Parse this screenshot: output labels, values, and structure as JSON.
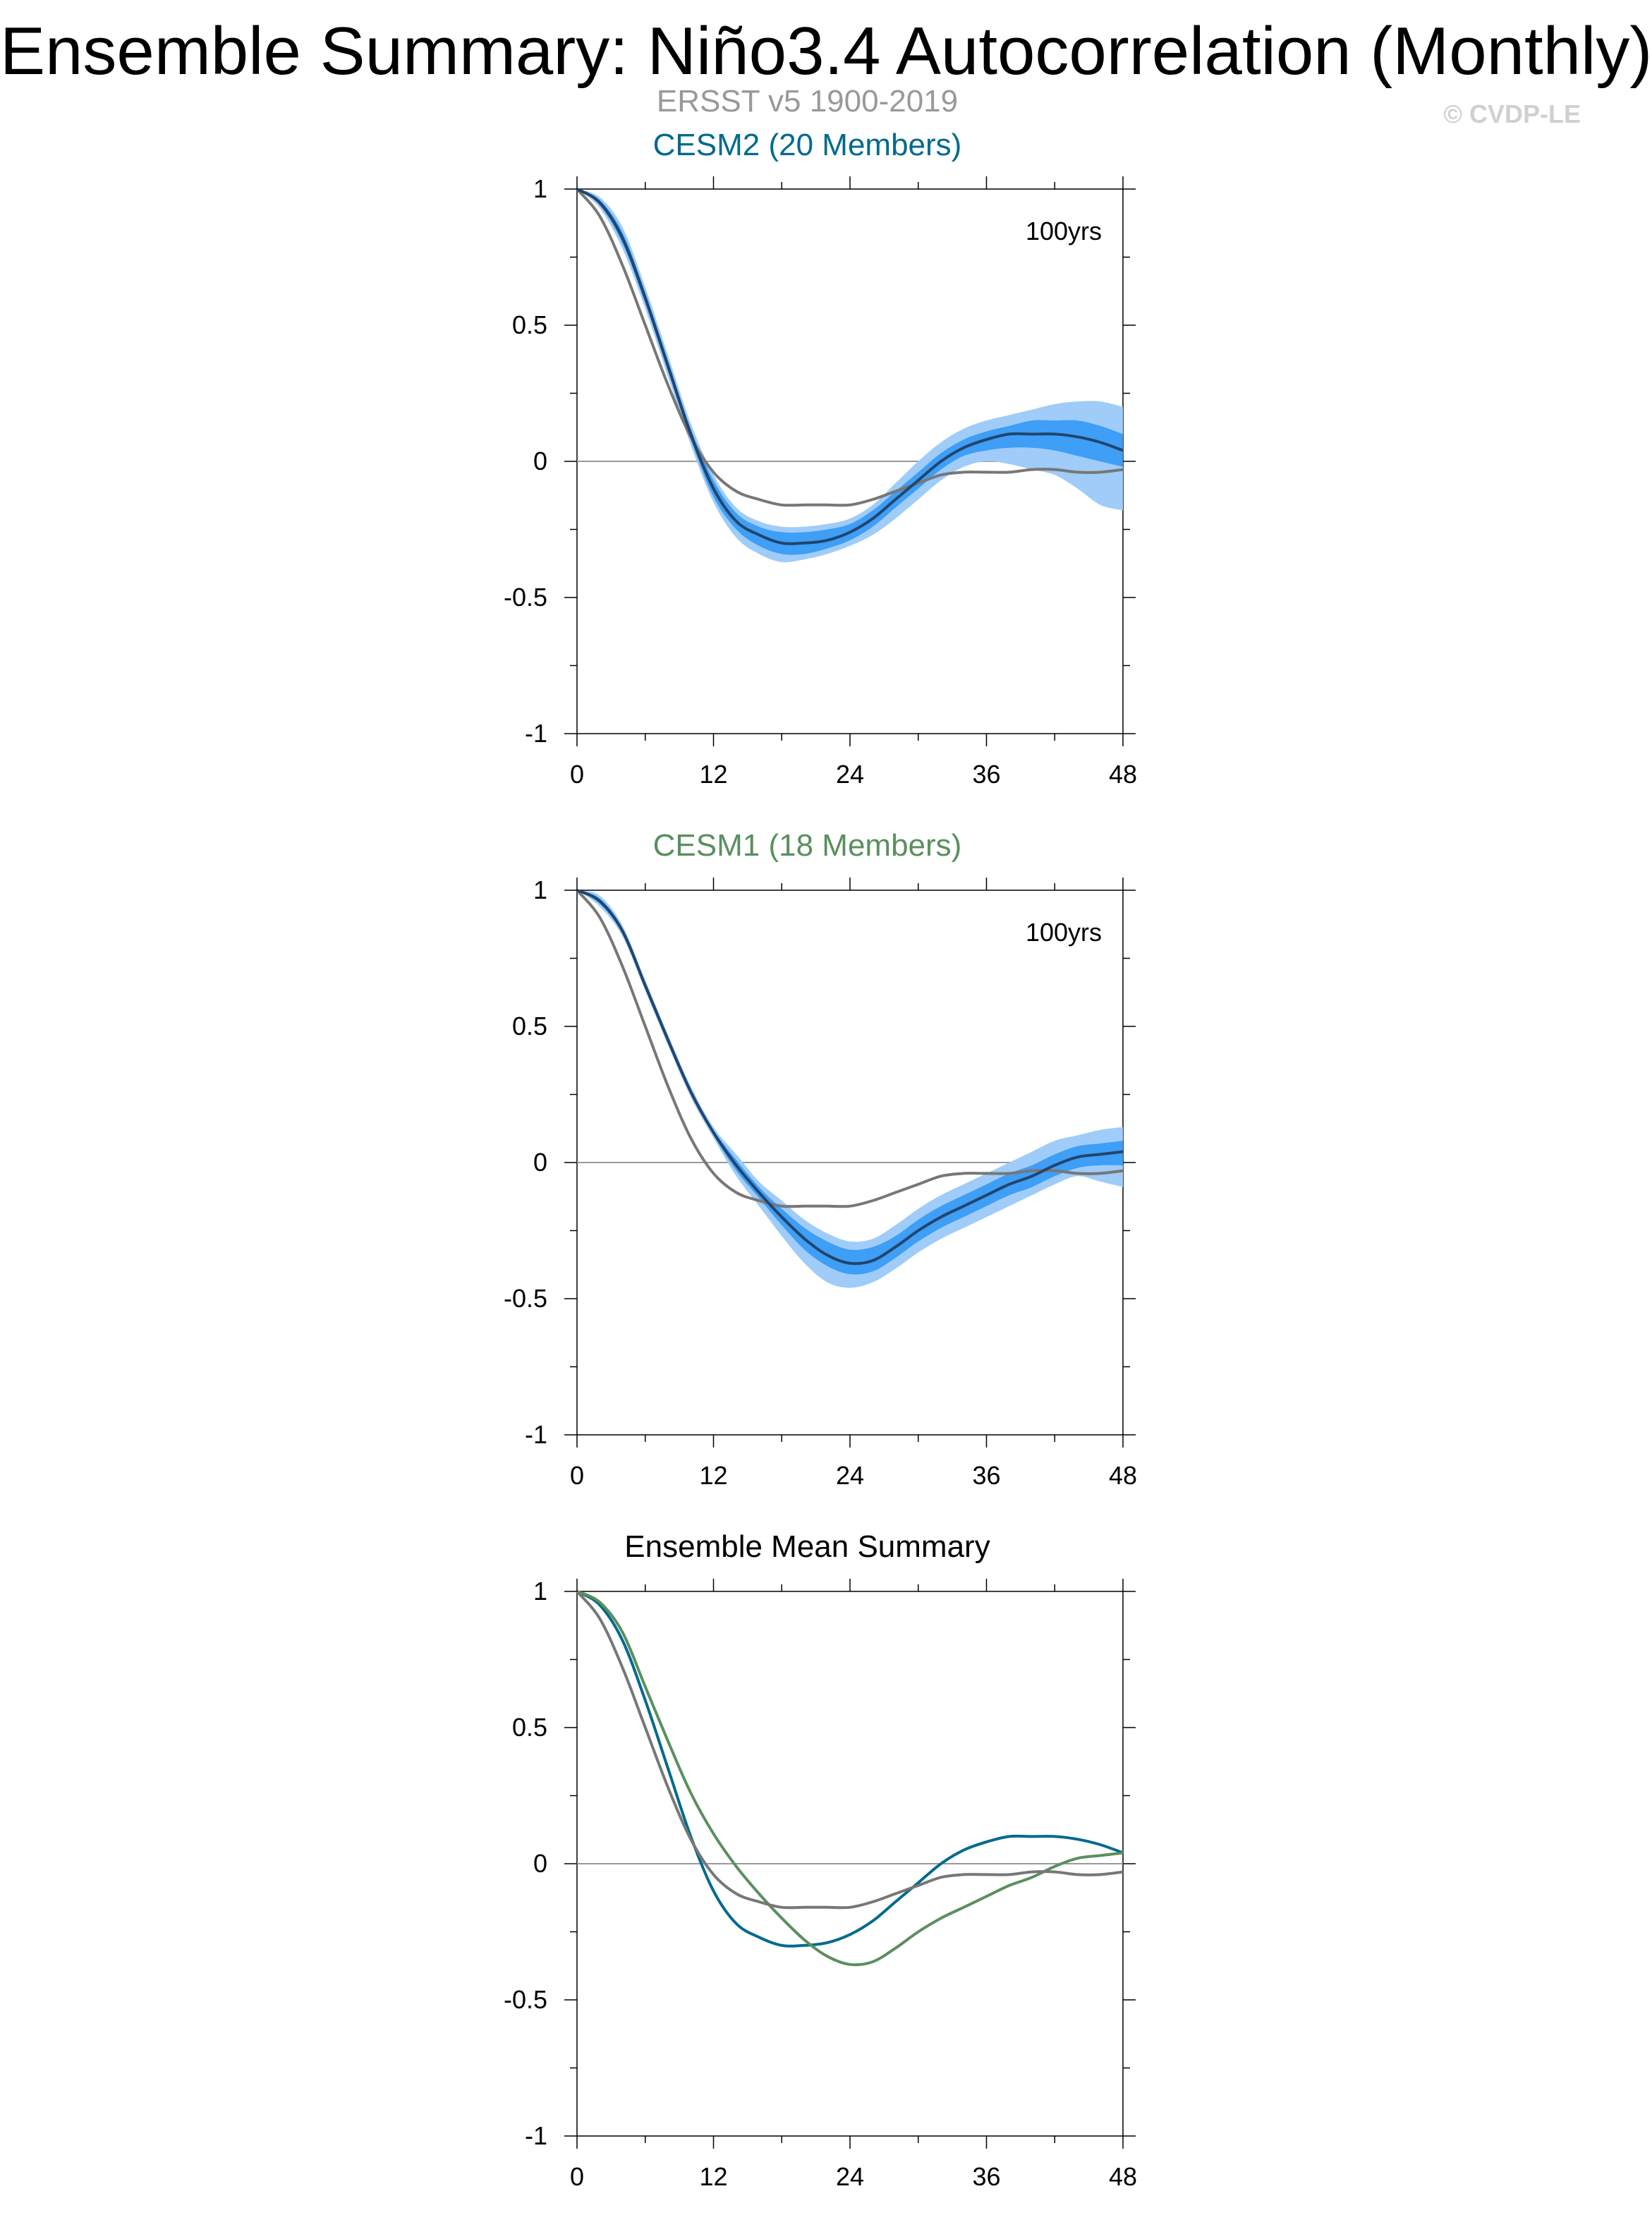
{
  "header": {
    "title": "Ensemble Summary: Niño3.4 Autocorrelation (Monthly)",
    "subtitle": "ERSST v5 1900-2019",
    "copyright": "© CVDP-LE"
  },
  "colors": {
    "subtitle": "#999999",
    "copyright": "#d0d0d0",
    "cesm2": "#006a8e",
    "cesm1": "#5a8f5e",
    "observations": "#777777",
    "band_outer": "#9fccf8",
    "band_mid": "#3f9ef5",
    "band_inner": "#1a73d1",
    "mean_line": "#21456e",
    "axis": "#000000",
    "zero_line": "#9a9a9a"
  },
  "chart_data": [
    {
      "type": "line",
      "title": "CESM2 (20 Members)",
      "annotation": "100yrs",
      "xlim": [
        0,
        48
      ],
      "ylim": [
        -1,
        1
      ],
      "xticks": [
        0,
        12,
        24,
        36,
        48
      ],
      "xtick_labels": [
        "0",
        "12",
        "24",
        "36",
        "48"
      ],
      "yticks": [
        -1,
        -0.5,
        0,
        0.5,
        1
      ],
      "ytick_labels": [
        "-1",
        "-0.5",
        "0",
        "0.5",
        "1"
      ],
      "x": [
        0,
        2,
        4,
        6,
        8,
        10,
        12,
        14,
        16,
        18,
        20,
        22,
        24,
        26,
        28,
        30,
        32,
        34,
        36,
        38,
        40,
        42,
        44,
        46,
        48
      ],
      "ensemble_mean": [
        1.0,
        0.95,
        0.82,
        0.6,
        0.35,
        0.1,
        -0.1,
        -0.22,
        -0.27,
        -0.3,
        -0.3,
        -0.29,
        -0.26,
        -0.21,
        -0.14,
        -0.07,
        0.0,
        0.05,
        0.08,
        0.1,
        0.1,
        0.1,
        0.09,
        0.07,
        0.04
      ],
      "band_inner_low": [
        1.0,
        0.94,
        0.8,
        0.58,
        0.33,
        0.08,
        -0.13,
        -0.25,
        -0.31,
        -0.34,
        -0.34,
        -0.32,
        -0.29,
        -0.24,
        -0.17,
        -0.1,
        -0.03,
        0.02,
        0.04,
        0.05,
        0.05,
        0.04,
        0.02,
        0.0,
        -0.02
      ],
      "band_inner_high": [
        1.0,
        0.96,
        0.84,
        0.62,
        0.37,
        0.12,
        -0.07,
        -0.19,
        -0.24,
        -0.26,
        -0.26,
        -0.25,
        -0.23,
        -0.18,
        -0.11,
        -0.04,
        0.03,
        0.08,
        0.11,
        0.13,
        0.15,
        0.15,
        0.15,
        0.13,
        0.1
      ],
      "band_outer_low": [
        1.0,
        0.93,
        0.78,
        0.56,
        0.31,
        0.06,
        -0.15,
        -0.28,
        -0.34,
        -0.37,
        -0.36,
        -0.34,
        -0.31,
        -0.27,
        -0.21,
        -0.14,
        -0.07,
        -0.02,
        -0.0,
        -0.01,
        -0.03,
        -0.05,
        -0.1,
        -0.16,
        -0.18
      ],
      "band_outer_high": [
        1.0,
        0.97,
        0.86,
        0.64,
        0.39,
        0.14,
        -0.05,
        -0.17,
        -0.22,
        -0.24,
        -0.24,
        -0.23,
        -0.21,
        -0.16,
        -0.08,
        0.0,
        0.07,
        0.12,
        0.15,
        0.17,
        0.19,
        0.21,
        0.22,
        0.22,
        0.2
      ],
      "observations": [
        1.0,
        0.9,
        0.72,
        0.5,
        0.28,
        0.09,
        -0.04,
        -0.11,
        -0.14,
        -0.16,
        -0.16,
        -0.16,
        -0.16,
        -0.14,
        -0.11,
        -0.08,
        -0.05,
        -0.04,
        -0.04,
        -0.04,
        -0.03,
        -0.03,
        -0.04,
        -0.04,
        -0.03
      ]
    },
    {
      "type": "line",
      "title": "CESM1 (18 Members)",
      "annotation": "100yrs",
      "xlim": [
        0,
        48
      ],
      "ylim": [
        -1,
        1
      ],
      "xticks": [
        0,
        12,
        24,
        36,
        48
      ],
      "xtick_labels": [
        "0",
        "12",
        "24",
        "36",
        "48"
      ],
      "yticks": [
        -1,
        -0.5,
        0,
        0.5,
        1
      ],
      "ytick_labels": [
        "-1",
        "-0.5",
        "0",
        "0.5",
        "1"
      ],
      "x": [
        0,
        2,
        4,
        6,
        8,
        10,
        12,
        14,
        16,
        18,
        20,
        22,
        24,
        26,
        28,
        30,
        32,
        34,
        36,
        38,
        40,
        42,
        44,
        46,
        48
      ],
      "ensemble_mean": [
        1.0,
        0.96,
        0.85,
        0.65,
        0.45,
        0.26,
        0.11,
        -0.01,
        -0.11,
        -0.2,
        -0.28,
        -0.34,
        -0.37,
        -0.36,
        -0.31,
        -0.25,
        -0.2,
        -0.16,
        -0.12,
        -0.08,
        -0.05,
        -0.01,
        0.02,
        0.03,
        0.04
      ],
      "band_inner_low": [
        1.0,
        0.95,
        0.84,
        0.64,
        0.44,
        0.25,
        0.1,
        -0.03,
        -0.13,
        -0.23,
        -0.32,
        -0.38,
        -0.41,
        -0.4,
        -0.35,
        -0.29,
        -0.24,
        -0.2,
        -0.16,
        -0.12,
        -0.09,
        -0.05,
        -0.02,
        -0.01,
        -0.01
      ],
      "band_inner_high": [
        1.0,
        0.97,
        0.86,
        0.66,
        0.46,
        0.27,
        0.12,
        0.01,
        -0.09,
        -0.17,
        -0.24,
        -0.29,
        -0.32,
        -0.31,
        -0.27,
        -0.21,
        -0.16,
        -0.12,
        -0.08,
        -0.04,
        -0.01,
        0.03,
        0.06,
        0.07,
        0.08
      ],
      "band_outer_low": [
        1.0,
        0.94,
        0.83,
        0.63,
        0.43,
        0.24,
        0.09,
        -0.05,
        -0.16,
        -0.27,
        -0.37,
        -0.44,
        -0.46,
        -0.44,
        -0.39,
        -0.33,
        -0.28,
        -0.24,
        -0.2,
        -0.16,
        -0.12,
        -0.08,
        -0.05,
        -0.07,
        -0.09
      ],
      "band_outer_high": [
        1.0,
        0.98,
        0.87,
        0.67,
        0.47,
        0.28,
        0.13,
        0.03,
        -0.07,
        -0.14,
        -0.21,
        -0.26,
        -0.29,
        -0.28,
        -0.23,
        -0.17,
        -0.12,
        -0.08,
        -0.04,
        -0.0,
        0.04,
        0.08,
        0.1,
        0.12,
        0.13
      ],
      "observations": [
        1.0,
        0.9,
        0.72,
        0.5,
        0.28,
        0.09,
        -0.04,
        -0.11,
        -0.14,
        -0.16,
        -0.16,
        -0.16,
        -0.16,
        -0.14,
        -0.11,
        -0.08,
        -0.05,
        -0.04,
        -0.04,
        -0.04,
        -0.03,
        -0.03,
        -0.04,
        -0.04,
        -0.03
      ]
    },
    {
      "type": "line",
      "title": "Ensemble Mean Summary",
      "xlim": [
        0,
        48
      ],
      "ylim": [
        -1,
        1
      ],
      "xticks": [
        0,
        12,
        24,
        36,
        48
      ],
      "xtick_labels": [
        "0",
        "12",
        "24",
        "36",
        "48"
      ],
      "yticks": [
        -1,
        -0.5,
        0,
        0.5,
        1
      ],
      "ytick_labels": [
        "-1",
        "-0.5",
        "0",
        "0.5",
        "1"
      ],
      "x": [
        0,
        2,
        4,
        6,
        8,
        10,
        12,
        14,
        16,
        18,
        20,
        22,
        24,
        26,
        28,
        30,
        32,
        34,
        36,
        38,
        40,
        42,
        44,
        46,
        48
      ],
      "series": [
        {
          "key": "cesm2",
          "values": [
            1.0,
            0.95,
            0.82,
            0.6,
            0.35,
            0.1,
            -0.1,
            -0.22,
            -0.27,
            -0.3,
            -0.3,
            -0.29,
            -0.26,
            -0.21,
            -0.14,
            -0.07,
            0.0,
            0.05,
            0.08,
            0.1,
            0.1,
            0.1,
            0.09,
            0.07,
            0.04
          ]
        },
        {
          "key": "cesm1",
          "values": [
            1.0,
            0.96,
            0.85,
            0.65,
            0.45,
            0.26,
            0.11,
            -0.01,
            -0.11,
            -0.2,
            -0.28,
            -0.34,
            -0.37,
            -0.36,
            -0.31,
            -0.25,
            -0.2,
            -0.16,
            -0.12,
            -0.08,
            -0.05,
            -0.01,
            0.02,
            0.03,
            0.04
          ]
        },
        {
          "key": "observations",
          "values": [
            1.0,
            0.9,
            0.72,
            0.5,
            0.28,
            0.09,
            -0.04,
            -0.11,
            -0.14,
            -0.16,
            -0.16,
            -0.16,
            -0.16,
            -0.14,
            -0.11,
            -0.08,
            -0.05,
            -0.04,
            -0.04,
            -0.04,
            -0.03,
            -0.03,
            -0.04,
            -0.04,
            -0.03
          ]
        }
      ]
    }
  ]
}
